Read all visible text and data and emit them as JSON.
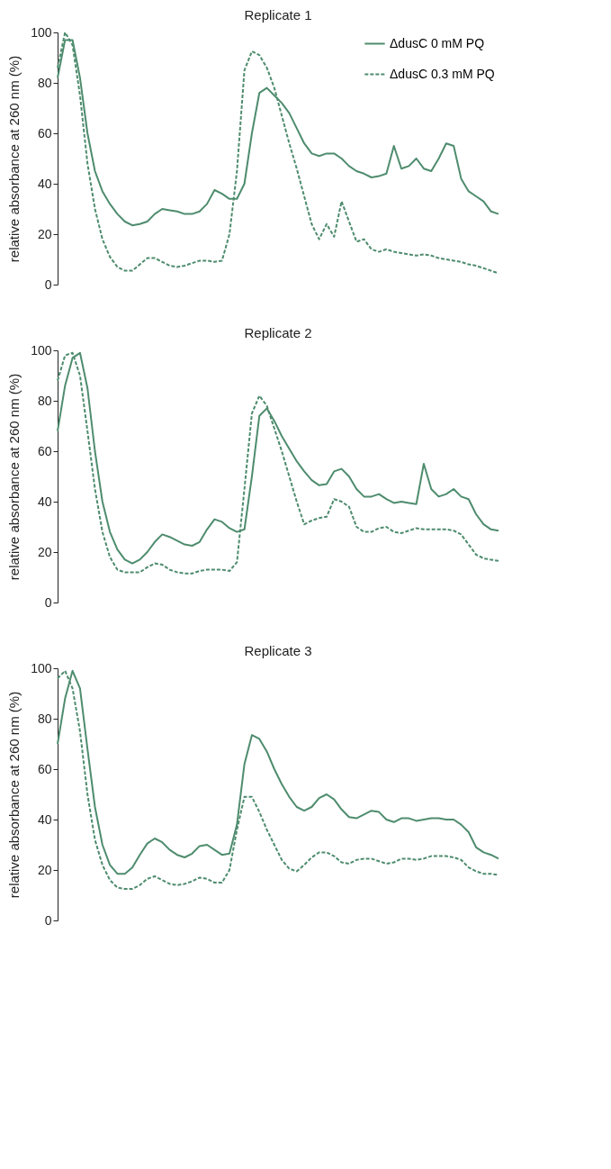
{
  "chart_data": [
    {
      "type": "line",
      "title": "Replicate 1",
      "ylabel": "relative absorbance at 260 nm (%)",
      "categories": [
        null,
        null,
        null,
        null,
        null,
        null,
        null,
        null,
        null,
        null,
        null,
        null,
        null,
        null,
        null,
        null,
        null,
        null,
        null,
        null,
        null,
        null,
        null,
        null,
        null,
        null,
        null,
        null,
        null,
        null,
        null,
        null,
        null,
        null,
        null,
        null,
        null,
        null,
        null,
        null,
        null,
        null,
        null,
        null,
        null,
        null,
        null,
        null,
        null,
        null,
        null,
        null,
        null,
        null,
        null,
        null,
        null,
        null,
        null,
        null
      ],
      "ylim": [
        0,
        100
      ],
      "yticks": [
        0,
        20,
        40,
        60,
        80,
        100
      ],
      "legend": "top right",
      "series": [
        {
          "name": "ΔdusC  0 mM PQ",
          "color": "#4e8c6e",
          "line_style": "solid",
          "values": [
            82,
            97,
            97,
            82,
            60,
            45,
            37,
            32,
            28,
            25,
            23.5,
            24,
            25,
            28,
            30,
            29.5,
            29,
            28,
            28,
            29,
            32,
            37.5,
            36,
            34,
            34,
            40,
            60,
            76,
            78,
            75,
            72,
            68,
            62,
            56,
            52,
            51,
            52,
            52,
            50,
            47,
            45,
            44,
            42.5,
            43,
            44,
            55,
            46,
            47,
            50,
            46,
            45,
            50,
            56,
            55,
            42,
            37,
            35,
            33,
            29,
            28
          ]
        },
        {
          "name": "ΔdusC  0.3 mM PQ",
          "color": "#4e8c6e",
          "line_style": "dashed",
          "values": [
            86,
            100,
            95,
            75,
            48,
            30,
            18,
            11,
            7,
            5.5,
            5.5,
            8,
            10.5,
            10.5,
            9,
            7.5,
            7,
            7.5,
            8.5,
            9.5,
            9.5,
            9,
            9.5,
            20,
            45,
            85,
            92.5,
            91,
            86,
            78,
            67,
            56,
            46,
            35,
            24,
            18,
            24,
            19,
            33,
            25,
            17,
            18,
            14,
            13,
            14,
            13,
            12.5,
            12,
            11.5,
            12,
            11.5,
            10.5,
            10,
            9.5,
            9,
            8,
            7.5,
            6.5,
            5.5,
            4.5
          ]
        }
      ]
    },
    {
      "type": "line",
      "title": "Replicate 2",
      "ylabel": "relative absorbance at 260 nm (%)",
      "categories": [
        null,
        null,
        null,
        null,
        null,
        null,
        null,
        null,
        null,
        null,
        null,
        null,
        null,
        null,
        null,
        null,
        null,
        null,
        null,
        null,
        null,
        null,
        null,
        null,
        null,
        null,
        null,
        null,
        null,
        null,
        null,
        null,
        null,
        null,
        null,
        null,
        null,
        null,
        null,
        null,
        null,
        null,
        null,
        null,
        null,
        null,
        null,
        null,
        null,
        null,
        null,
        null,
        null,
        null,
        null,
        null,
        null,
        null,
        null,
        null
      ],
      "ylim": [
        0,
        100
      ],
      "yticks": [
        0,
        20,
        40,
        60,
        80,
        100
      ],
      "series": [
        {
          "color": "#4e8c6e",
          "line_style": "solid",
          "values": [
            68,
            86,
            97,
            99,
            85,
            60,
            40,
            28,
            21,
            17,
            15.5,
            17,
            20,
            24,
            27,
            26,
            24.5,
            23,
            22.5,
            24,
            29,
            33,
            32,
            29.5,
            28,
            29,
            50,
            74,
            77,
            72,
            66,
            61,
            56,
            52,
            48.5,
            46.5,
            47,
            52,
            53,
            50,
            45,
            42,
            42,
            43,
            41,
            39.5,
            40,
            39.5,
            39,
            55,
            45,
            42,
            43,
            45,
            42,
            41,
            35,
            31,
            29,
            28.5
          ]
        },
        {
          "color": "#4e8c6e",
          "line_style": "dashed",
          "values": [
            88,
            98,
            99,
            90,
            68,
            45,
            28,
            18,
            13,
            12,
            12,
            12,
            14,
            15.5,
            15,
            13,
            12,
            11.5,
            11.5,
            12.5,
            13,
            13,
            13,
            12.5,
            16,
            45,
            75,
            82,
            78,
            69,
            60,
            50,
            40,
            31,
            32.5,
            33.5,
            34,
            41,
            40,
            38,
            30,
            28,
            28,
            29.5,
            30,
            28,
            27.5,
            28.5,
            29.5,
            29,
            29,
            29,
            29,
            28.5,
            27,
            23,
            19,
            17.5,
            17,
            16.5
          ]
        }
      ]
    },
    {
      "type": "line",
      "title": "Replicate 3",
      "ylabel": "relative absorbance at 260 nm (%)",
      "categories": [
        null,
        null,
        null,
        null,
        null,
        null,
        null,
        null,
        null,
        null,
        null,
        null,
        null,
        null,
        null,
        null,
        null,
        null,
        null,
        null,
        null,
        null,
        null,
        null,
        null,
        null,
        null,
        null,
        null,
        null,
        null,
        null,
        null,
        null,
        null,
        null,
        null,
        null,
        null,
        null,
        null,
        null,
        null,
        null,
        null,
        null,
        null,
        null,
        null,
        null,
        null,
        null,
        null,
        null,
        null,
        null,
        null,
        null,
        null,
        null
      ],
      "ylim": [
        0,
        100
      ],
      "yticks": [
        0,
        20,
        40,
        60,
        80,
        100
      ],
      "series": [
        {
          "color": "#4e8c6e",
          "line_style": "solid",
          "values": [
            70,
            88,
            99,
            92,
            68,
            45,
            30,
            22,
            18.5,
            18.5,
            21,
            26,
            30.5,
            32.5,
            31,
            28,
            26,
            25,
            26.5,
            29.5,
            30,
            28,
            26,
            26.5,
            38,
            62,
            73.5,
            72,
            67,
            60,
            54,
            49,
            45,
            43.5,
            45,
            48.5,
            50,
            48,
            44,
            41,
            40.5,
            42,
            43.5,
            43,
            40,
            39,
            40.5,
            40.5,
            39.5,
            40,
            40.5,
            40.5,
            40,
            40,
            38,
            35,
            29,
            27,
            26,
            24.5
          ]
        },
        {
          "color": "#4e8c6e",
          "line_style": "dashed",
          "values": [
            96,
            99,
            92,
            75,
            50,
            32,
            22,
            16,
            13,
            12.5,
            12.5,
            14,
            16.5,
            17.5,
            16,
            14.5,
            14,
            14.5,
            15.5,
            17,
            16.5,
            15,
            15,
            20,
            36,
            49,
            49,
            43,
            36,
            30,
            24,
            20.5,
            19.5,
            22,
            25,
            27,
            27,
            25.5,
            23,
            22.5,
            24,
            24.5,
            24.5,
            23.5,
            22.5,
            23,
            24.5,
            24.5,
            24,
            24.5,
            25.5,
            25.5,
            25.5,
            25,
            24,
            21,
            19.5,
            18.5,
            18.5,
            18
          ]
        }
      ]
    }
  ]
}
